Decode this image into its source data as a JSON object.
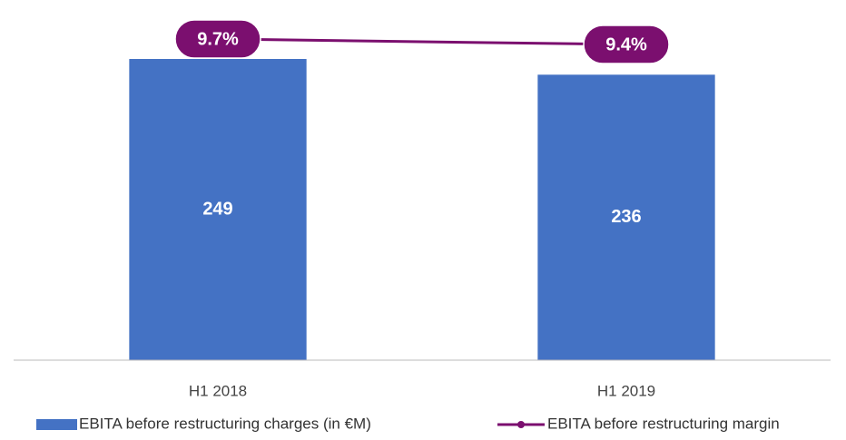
{
  "chart_data": {
    "type": "bar",
    "categories": [
      "H1 2018",
      "H1 2019"
    ],
    "ylim": [
      0,
      300
    ],
    "y2lim": [
      -8,
      12
    ],
    "series": [
      {
        "name": "EBITA before restructuring charges (in €M)",
        "type": "bar",
        "color": "#4472c4",
        "values": [
          249,
          236
        ]
      },
      {
        "name": "EBITA before restructuring margin",
        "type": "line",
        "axis": "y2",
        "color": "#7b0f6f",
        "values": [
          9.7,
          9.4
        ],
        "value_labels": [
          "9.7%",
          "9.4%"
        ]
      }
    ]
  }
}
